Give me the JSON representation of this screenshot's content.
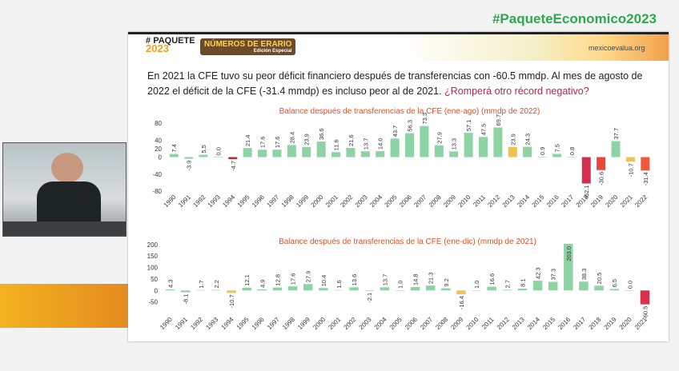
{
  "hashtag": "#PaqueteEconomico2023",
  "slide": {
    "logo": {
      "symbol": "#",
      "name": "PAQUETE",
      "year": "2023"
    },
    "series_logo": {
      "name": "NÚMEROS DE ERARIO",
      "edition": "Edición Especial"
    },
    "site": "mexicoevalua.org",
    "text": "En 2021 la CFE tuvo su peor déficit financiero después de transferencias con -60.5 mmdp. Al mes de agosto de 2022 el déficit de la CFE (-31.4 mmdp) es incluso peor al de 2021.",
    "question": "¿Romperá otro récord negativo?"
  },
  "chart_data": [
    {
      "type": "bar",
      "title": "Balance después de transferencias de la CFE (ene-ago) (mmdp de 2022)",
      "categories": [
        "1990",
        "1991",
        "1992",
        "1993",
        "1994",
        "1995",
        "1996",
        "1997",
        "1998",
        "1999",
        "2000",
        "2001",
        "2002",
        "2003",
        "2004",
        "2005",
        "2006",
        "2007",
        "2008",
        "2009",
        "2010",
        "2011",
        "2012",
        "2013",
        "2014",
        "2015",
        "2016",
        "2017",
        "2018",
        "2019",
        "2020",
        "2021",
        "2022"
      ],
      "values": [
        7.4,
        -3.9,
        5.5,
        0.0,
        -4.7,
        21.4,
        17.6,
        17.6,
        28.4,
        23.9,
        36.6,
        11.6,
        21.6,
        13.7,
        14.0,
        43.7,
        56.3,
        73.3,
        27.9,
        13.3,
        57.1,
        47.5,
        69.7,
        23.9,
        24.3,
        0.9,
        7.5,
        0.8,
        -62.1,
        -30.6,
        37.7,
        -10.7,
        -31.4
      ],
      "value_labels": [
        "7.4",
        "-3.9",
        "5.5",
        "0.0",
        "-4.7",
        "21.4",
        "17.6",
        "17.6",
        "28.4",
        "23.9",
        "36.6",
        "11.6",
        "21.6",
        "13.7",
        "14.0",
        "43.7",
        "56.3",
        "73.3",
        "27.9",
        "13.3",
        "57.1",
        "47.5",
        "69.7",
        "23.9",
        "24.3",
        "0.9",
        "7.5",
        "0.8",
        "-62.1",
        "-30.6",
        "37.7",
        "-10.7",
        "-31.4"
      ],
      "colors": [
        "#8ed3a4",
        "#8ed3a4",
        "#8ed3a4",
        "#8ed3a4",
        "#c0282d",
        "#8ed3a4",
        "#8ed3a4",
        "#8ed3a4",
        "#8ed3a4",
        "#8ed3a4",
        "#8ed3a4",
        "#8ed3a4",
        "#8ed3a4",
        "#8ed3a4",
        "#8ed3a4",
        "#8ed3a4",
        "#8ed3a4",
        "#8ed3a4",
        "#8ed3a4",
        "#8ed3a4",
        "#8ed3a4",
        "#8ed3a4",
        "#8ed3a4",
        "#f0c24f",
        "#8ed3a4",
        "#8ed3a4",
        "#8ed3a4",
        "#8ed3a4",
        "#d22f4f",
        "#e8463c",
        "#8ed3a4",
        "#f0c24f",
        "#ef5a3c"
      ],
      "ylim": [
        -80,
        80
      ],
      "yticks": [
        80,
        40,
        20,
        0,
        -40,
        -80
      ],
      "grid": false
    },
    {
      "type": "bar",
      "title": "Balance después de transferencias de la CFE (ene-dic) (mmdp de 2021)",
      "categories": [
        "1990",
        "1991",
        "1992",
        "1993",
        "1994",
        "1995",
        "1996",
        "1997",
        "1998",
        "1999",
        "2000",
        "2001",
        "2002",
        "2003",
        "2004",
        "2005",
        "2006",
        "2007",
        "2008",
        "2009",
        "2010",
        "2011",
        "2012",
        "2013",
        "2014",
        "2015",
        "2016",
        "2017",
        "2018",
        "2019",
        "2020",
        "2021"
      ],
      "values": [
        4.3,
        -8.1,
        1.7,
        2.2,
        -10.7,
        12.1,
        4.9,
        12.8,
        17.6,
        27.9,
        10.4,
        1.6,
        13.6,
        -2.1,
        13.7,
        1.0,
        14.8,
        21.3,
        9.2,
        -16.4,
        1.0,
        16.6,
        2.7,
        8.1,
        42.3,
        37.3,
        203.0,
        38.3,
        20.5,
        6.5,
        0.0,
        -60.5
      ],
      "value_labels": [
        "4.3",
        "-8.1",
        "1.7",
        "2.2",
        "-10.7",
        "12.1",
        "4.9",
        "12.8",
        "17.6",
        "27.9",
        "10.4",
        "1.6",
        "13.6",
        "-2.1",
        "13.7",
        "1.0",
        "14.8",
        "21.3",
        "9.2",
        "-16.4",
        "1.0",
        "16.6",
        "2.7",
        "8.1",
        "42.3",
        "37.3",
        "203.0",
        "38.3",
        "20.5",
        "6.5",
        "0.0",
        "-60.5"
      ],
      "colors": [
        "#8ed3a4",
        "#8ed3a4",
        "#8ed3a4",
        "#8ed3a4",
        "#f0c24f",
        "#8ed3a4",
        "#8ed3a4",
        "#8ed3a4",
        "#8ed3a4",
        "#8ed3a4",
        "#8ed3a4",
        "#8ed3a4",
        "#8ed3a4",
        "#8ed3a4",
        "#8ed3a4",
        "#8ed3a4",
        "#8ed3a4",
        "#8ed3a4",
        "#8ed3a4",
        "#f0c24f",
        "#8ed3a4",
        "#8ed3a4",
        "#8ed3a4",
        "#8ed3a4",
        "#8ed3a4",
        "#8ed3a4",
        "#8ed3a4",
        "#8ed3a4",
        "#8ed3a4",
        "#8ed3a4",
        "#8ed3a4",
        "#d6304a"
      ],
      "ylim": [
        -100,
        220
      ],
      "yticks": [
        200,
        150,
        100,
        50,
        0,
        -50
      ],
      "grid": false
    }
  ]
}
